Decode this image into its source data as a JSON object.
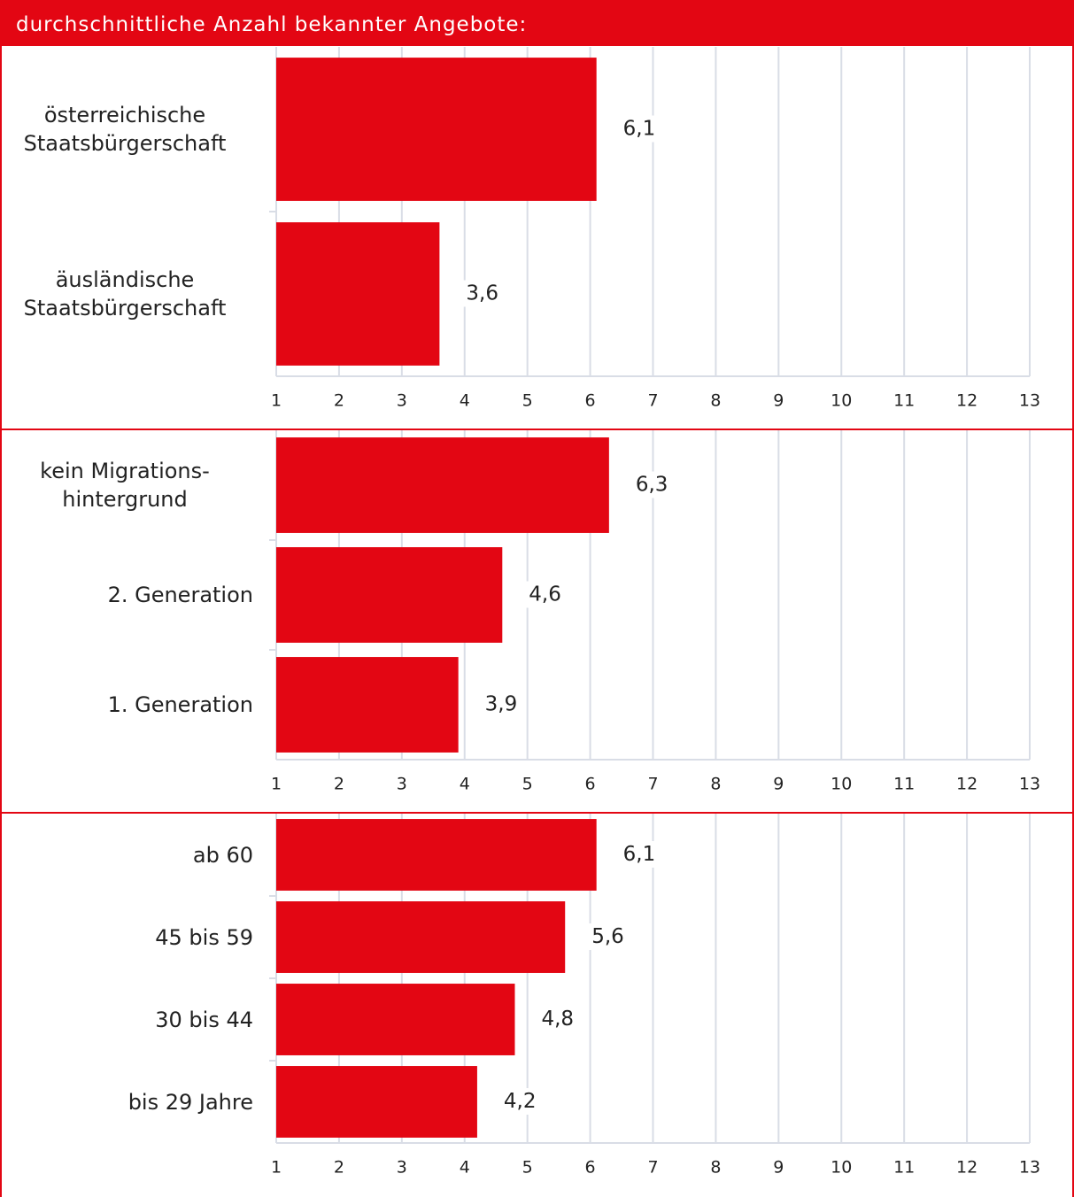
{
  "header": {
    "title": "durchschnittliche Anzahl bekannter Angebote:"
  },
  "chart_data": [
    {
      "type": "bar",
      "orientation": "horizontal",
      "color": "#e30613",
      "grid": true,
      "categories": [
        "österreichische\nStaatsbürgerschaft",
        "äusländische\nStaatsbürgerschaft"
      ],
      "values": [
        6.1,
        3.6
      ],
      "value_labels": [
        "6,1",
        "3,6"
      ],
      "xlim": [
        1,
        13
      ],
      "xticks": [
        1,
        2,
        3,
        4,
        5,
        6,
        7,
        8,
        9,
        10,
        11,
        12,
        13
      ]
    },
    {
      "type": "bar",
      "orientation": "horizontal",
      "color": "#e30613",
      "grid": true,
      "categories": [
        "kein Migrations-\nhintergrund",
        "2. Generation",
        "1. Generation"
      ],
      "values": [
        6.3,
        4.6,
        3.9
      ],
      "value_labels": [
        "6,3",
        "4,6",
        "3,9"
      ],
      "xlim": [
        1,
        13
      ],
      "xticks": [
        1,
        2,
        3,
        4,
        5,
        6,
        7,
        8,
        9,
        10,
        11,
        12,
        13
      ]
    },
    {
      "type": "bar",
      "orientation": "horizontal",
      "color": "#e30613",
      "grid": true,
      "categories": [
        "ab 60",
        "45 bis 59",
        "30 bis 44",
        "bis 29 Jahre"
      ],
      "values": [
        6.1,
        5.6,
        4.8,
        4.2
      ],
      "value_labels": [
        "6,1",
        "5,6",
        "4,8",
        "4,2"
      ],
      "xlim": [
        1,
        13
      ],
      "xticks": [
        1,
        2,
        3,
        4,
        5,
        6,
        7,
        8,
        9,
        10,
        11,
        12,
        13
      ]
    }
  ]
}
